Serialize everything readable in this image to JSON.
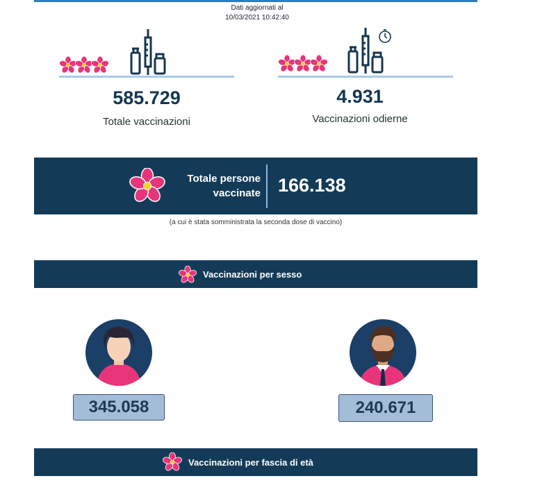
{
  "header": {
    "updated_label": "Dati aggiornati al",
    "updated_at": "10/03/2021 10:42:40"
  },
  "kpis": {
    "total": {
      "value": "585.729",
      "label": "Totale vaccinazioni"
    },
    "today": {
      "value": "4.931",
      "label": "Vaccinazioni odierne"
    }
  },
  "persons": {
    "label_line1": "Totale persone",
    "label_line2": "vaccinate",
    "value": "166.138",
    "note": "(a cui è stata somministrata la seconda dose di vaccino)"
  },
  "sections": {
    "by_sex": "Vaccinazioni per sesso",
    "by_age": "Vaccinazioni per fascia di età"
  },
  "sex": {
    "female": "345.058",
    "male": "240.671"
  },
  "colors": {
    "navy": "#133b58",
    "pink": "#e8357a",
    "accent_line": "#a9c9ea",
    "count_box": "#a3bcd7"
  },
  "icons": [
    "flower-icon",
    "vaccine-vial-syringe-icon",
    "timer-icon",
    "female-avatar-icon",
    "male-avatar-icon"
  ]
}
